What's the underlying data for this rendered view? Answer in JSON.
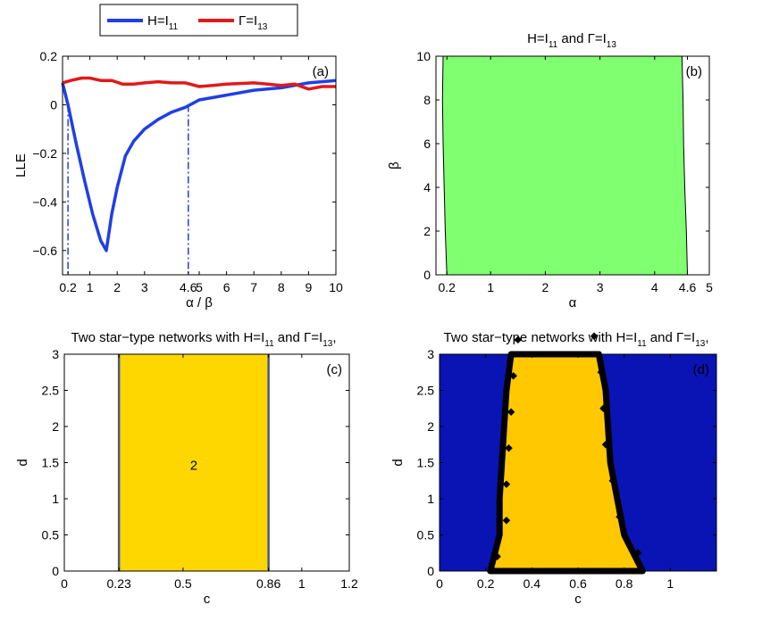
{
  "colors": {
    "blue": "#1f3fe6",
    "red": "#e01a1a",
    "green": "#80ff70",
    "gold": "#ffd700",
    "goldB": "#ffc800",
    "navy": "#0a14b4",
    "black": "#000000"
  },
  "legend": {
    "h_base": "H=I",
    "h_sub": "11",
    "g_base": "Γ=I",
    "g_sub": "13"
  },
  "title_b": {
    "a": "H=I",
    "a_sub": "11",
    "b": " and Γ=I",
    "b_sub": "13"
  },
  "title_cd": {
    "a": "Two star−type networks with H=I",
    "a_sub": "11",
    "b": " and Γ=I",
    "b_sub": "13",
    "c": ","
  },
  "chart_data": [
    {
      "panel": "(a)",
      "type": "line",
      "xlabel": "α / β",
      "ylabel": "LLE",
      "xlim": [
        0,
        10
      ],
      "ylim": [
        -0.7,
        0.2
      ],
      "xticks": [
        "0.2",
        "1",
        "2",
        "3",
        "4.6",
        "5",
        "6",
        "7",
        "8",
        "9",
        "10"
      ],
      "xtick_values": [
        0.2,
        1,
        2,
        3,
        4.6,
        5,
        6,
        7,
        8,
        9,
        10
      ],
      "yticks": [
        "0.2",
        "0",
        "−0.2",
        "−0.4",
        "−0.6"
      ],
      "ytick_values": [
        0.2,
        0,
        -0.2,
        -0.4,
        -0.6
      ],
      "vlines": [
        0.2,
        4.6
      ],
      "series": [
        {
          "name": "H=I11",
          "color": "blue",
          "x": [
            0,
            0.2,
            0.5,
            0.8,
            1.1,
            1.4,
            1.6,
            1.8,
            2.0,
            2.3,
            2.6,
            3.0,
            3.5,
            4.0,
            4.5,
            5.0,
            6.0,
            7.0,
            8.0,
            9.0,
            10.0
          ],
          "y": [
            0.09,
            0.0,
            -0.16,
            -0.31,
            -0.45,
            -0.56,
            -0.6,
            -0.45,
            -0.34,
            -0.21,
            -0.15,
            -0.1,
            -0.06,
            -0.03,
            -0.01,
            0.02,
            0.04,
            0.06,
            0.07,
            0.09,
            0.1
          ]
        },
        {
          "name": "Γ=I13",
          "color": "red",
          "x": [
            0,
            0.3,
            0.7,
            1.0,
            1.4,
            1.8,
            2.2,
            2.6,
            3.0,
            3.5,
            4.0,
            4.5,
            5.0,
            5.5,
            6.0,
            7.0,
            7.5,
            8.0,
            8.5,
            9.0,
            9.5,
            10.0
          ],
          "y": [
            0.09,
            0.1,
            0.11,
            0.11,
            0.1,
            0.1,
            0.085,
            0.085,
            0.09,
            0.095,
            0.09,
            0.09,
            0.075,
            0.08,
            0.085,
            0.09,
            0.085,
            0.08,
            0.085,
            0.065,
            0.075,
            0.075
          ]
        }
      ]
    },
    {
      "panel": "(b)",
      "type": "area",
      "xlabel": "α",
      "ylabel": "β",
      "xlim": [
        0,
        5
      ],
      "ylim": [
        0,
        10
      ],
      "xticks": [
        "0.2",
        "1",
        "2",
        "3",
        "4",
        "4.6",
        "5"
      ],
      "xtick_values": [
        0.2,
        1,
        2,
        3,
        4,
        4.6,
        5
      ],
      "yticks": [
        "0",
        "2",
        "4",
        "6",
        "8",
        "10"
      ],
      "ytick_values": [
        0,
        2,
        4,
        6,
        8,
        10
      ],
      "left_boundary": [
        [
          0.2,
          0
        ],
        [
          0.17,
          2
        ],
        [
          0.15,
          4
        ],
        [
          0.13,
          6
        ],
        [
          0.12,
          8
        ],
        [
          0.13,
          10
        ]
      ],
      "right_boundary": [
        [
          4.6,
          0
        ],
        [
          4.58,
          2
        ],
        [
          4.55,
          4
        ],
        [
          4.53,
          6
        ],
        [
          4.52,
          8
        ],
        [
          4.5,
          10
        ]
      ]
    },
    {
      "panel": "(c)",
      "type": "heatmap",
      "xlabel": "c",
      "ylabel": "d",
      "xlim": [
        0,
        1.2
      ],
      "ylim": [
        0,
        3
      ],
      "xticks": [
        "0",
        "0.23",
        "0.5",
        "0.86",
        "1",
        "1.2"
      ],
      "xtick_values": [
        0,
        0.23,
        0.5,
        0.86,
        1,
        1.2
      ],
      "yticks": [
        "0",
        "0.5",
        "1",
        "1.5",
        "2",
        "2.5",
        "3"
      ],
      "ytick_values": [
        0,
        0.5,
        1,
        1.5,
        2,
        2.5,
        3
      ],
      "region": {
        "c_min": 0.23,
        "c_max": 0.86,
        "label": "2"
      }
    },
    {
      "panel": "(d)",
      "type": "heatmap",
      "xlabel": "c",
      "ylabel": "d",
      "xlim": [
        0,
        1.2
      ],
      "ylim": [
        0,
        3
      ],
      "xticks": [
        "0",
        "0.2",
        "0.4",
        "0.6",
        "0.8",
        "1"
      ],
      "xtick_values": [
        0,
        0.2,
        0.4,
        0.6,
        0.8,
        1
      ],
      "yticks": [
        "0",
        "0.5",
        "1",
        "1.5",
        "2",
        "2.5",
        "3"
      ],
      "ytick_values": [
        0,
        0.5,
        1,
        1.5,
        2,
        2.5,
        3
      ],
      "left_boundary": [
        [
          0.22,
          0
        ],
        [
          0.26,
          0.5
        ],
        [
          0.26,
          1
        ],
        [
          0.27,
          1.5
        ],
        [
          0.28,
          2
        ],
        [
          0.29,
          2.5
        ],
        [
          0.31,
          3
        ]
      ],
      "right_boundary": [
        [
          0.88,
          0
        ],
        [
          0.8,
          0.5
        ],
        [
          0.77,
          1
        ],
        [
          0.74,
          1.5
        ],
        [
          0.73,
          2
        ],
        [
          0.72,
          2.5
        ],
        [
          0.69,
          3
        ]
      ]
    }
  ]
}
